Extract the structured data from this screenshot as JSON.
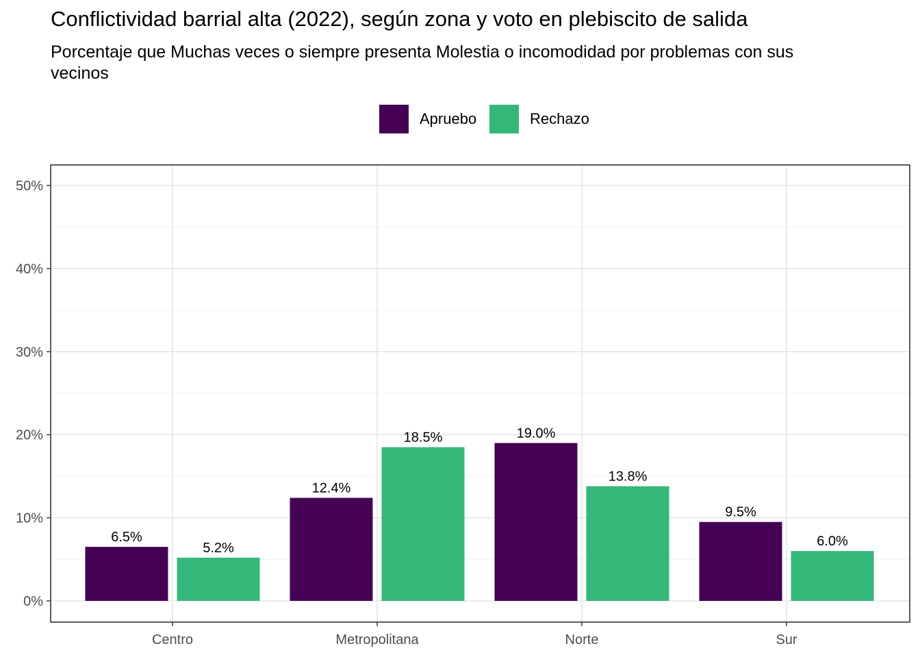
{
  "chart_data": {
    "type": "bar",
    "title": "Conflictividad barrial alta (2022), según zona y voto en plebiscito de salida",
    "subtitle": "Porcentaje que Muchas veces o siempre presenta Molestia o incomodidad por problemas con sus vecinos",
    "xlabel": "",
    "ylabel": "",
    "categories": [
      "Centro",
      "Metropolitana",
      "Norte",
      "Sur"
    ],
    "series": [
      {
        "name": "Apruebo",
        "color": "#440154",
        "values": [
          6.5,
          12.4,
          19.0,
          9.5
        ],
        "labels": [
          "6.5%",
          "12.4%",
          "19.0%",
          "9.5%"
        ]
      },
      {
        "name": "Rechazo",
        "color": "#35B779",
        "values": [
          5.2,
          18.5,
          13.8,
          6.0
        ],
        "labels": [
          "5.2%",
          "18.5%",
          "13.8%",
          "6.0%"
        ]
      }
    ],
    "ylim": [
      0,
      50
    ],
    "yticks": [
      0,
      10,
      20,
      30,
      40,
      50
    ],
    "ytick_labels": [
      "0%",
      "10%",
      "20%",
      "30%",
      "40%",
      "50%"
    ],
    "grid": true,
    "legend_position": "top"
  }
}
